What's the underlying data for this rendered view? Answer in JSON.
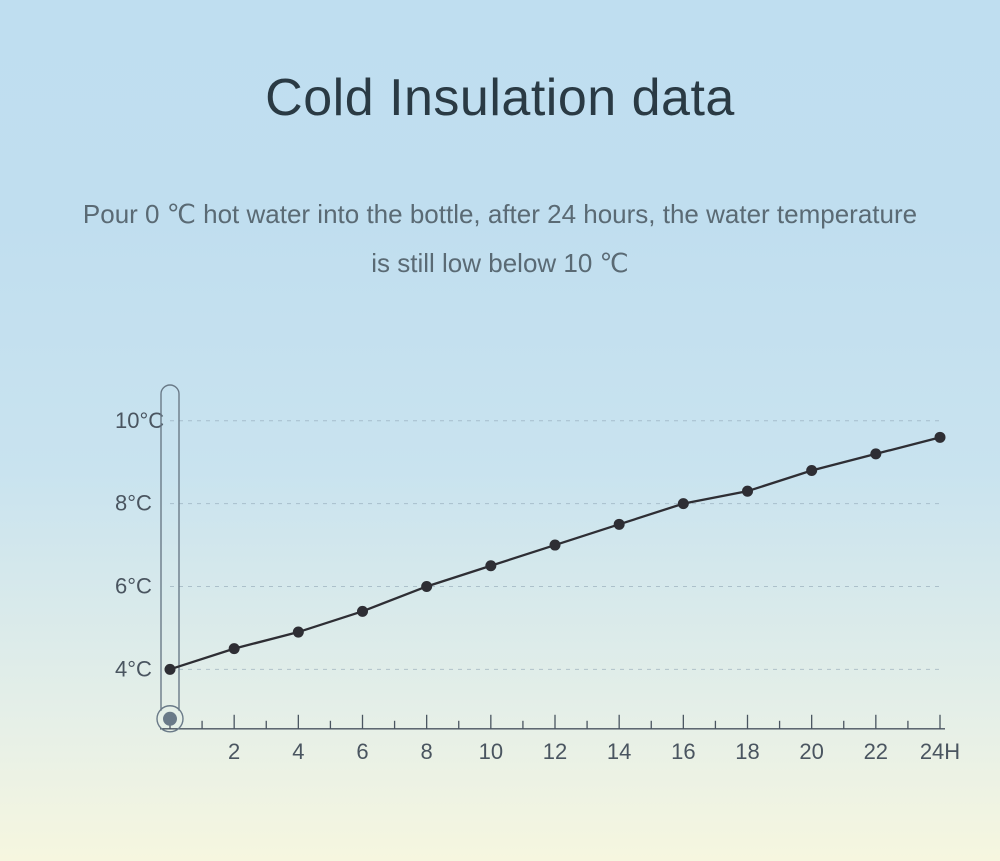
{
  "title": "Cold Insulation data",
  "subtitle": "Pour 0 ℃ hot water into the bottle, after 24 hours, the water temperature is still low below 10 ℃",
  "chart": {
    "type": "line",
    "background_gradient_top": "#bfdef0",
    "background_gradient_bottom": "#f6f6df",
    "title_color": "#2a3a44",
    "subtitle_color": "#5a6a74",
    "title_fontsize": 52,
    "subtitle_fontsize": 26,
    "label_fontsize": 22,
    "label_color": "#4a5560",
    "grid_color": "#8aa0b0",
    "grid_dash": "4 5",
    "axis_color": "#4a5560",
    "line_color": "#2e2e34",
    "line_width": 2.3,
    "marker_style": "circle",
    "marker_radius": 5.5,
    "marker_color": "#2e2e34",
    "x_values": [
      0,
      2,
      4,
      6,
      8,
      10,
      12,
      14,
      16,
      18,
      20,
      22,
      24
    ],
    "y_values": [
      4.0,
      4.5,
      4.9,
      5.4,
      6.0,
      6.5,
      7.0,
      7.5,
      8.0,
      8.3,
      8.8,
      9.2,
      9.6
    ],
    "y_ticks": [
      4,
      6,
      8,
      10
    ],
    "y_tick_labels": [
      "4°C",
      "6°C",
      "8°C",
      "10°C"
    ],
    "x_ticks": [
      2,
      4,
      6,
      8,
      10,
      12,
      14,
      16,
      18,
      20,
      22,
      24
    ],
    "x_tick_labels": [
      "2",
      "4",
      "6",
      "8",
      "10",
      "12",
      "14",
      "16",
      "18",
      "20",
      "22",
      "24H"
    ],
    "x_minor_visible": true,
    "ylim": [
      3,
      10.5
    ],
    "xlim": [
      0,
      24
    ],
    "thermometer_decoration": true,
    "thermometer_stroke": "#6a7a88"
  }
}
